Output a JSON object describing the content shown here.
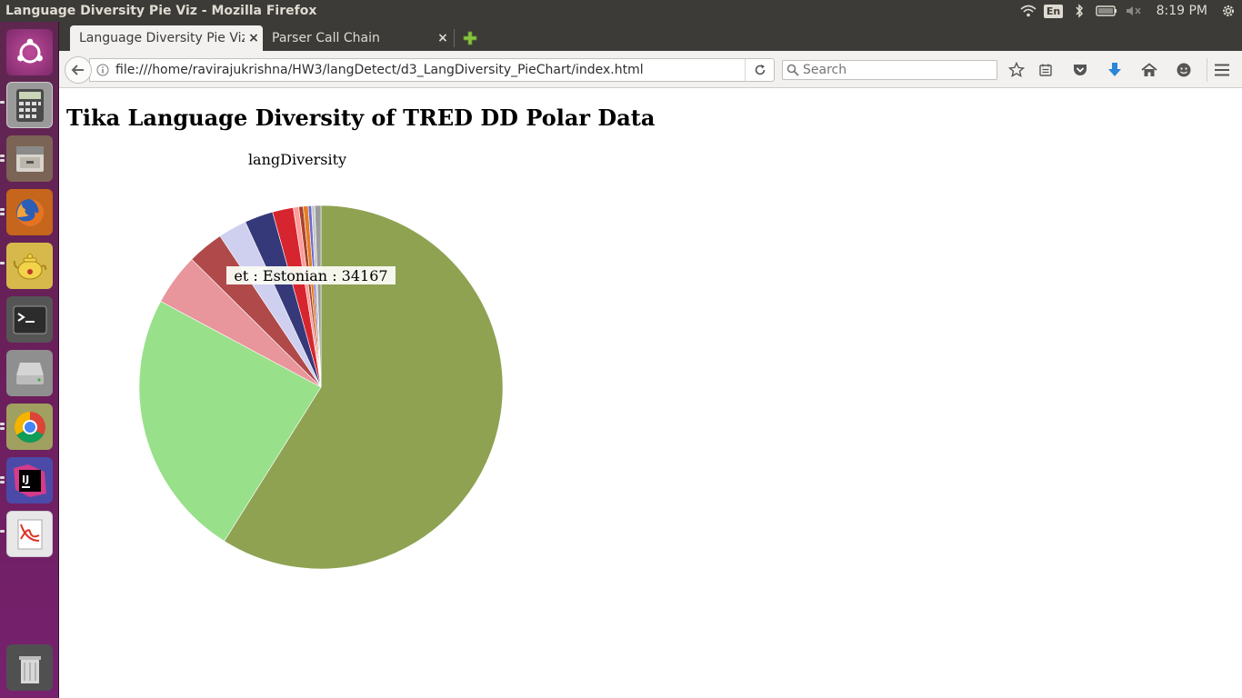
{
  "topbar": {
    "window_title": "Language Diversity Pie Viz - Mozilla Firefox",
    "keyboard_layout": "En",
    "clock": "8:19 PM"
  },
  "tabs": [
    {
      "label": "Language Diversity Pie Viz",
      "active": true
    },
    {
      "label": "Parser Call Chain",
      "active": false
    }
  ],
  "navbar": {
    "url": "file:///home/ravirajukrishna/HW3/langDetect/d3_LangDiversity_PieChart/index.html",
    "search_placeholder": "Search"
  },
  "launcher": {
    "items": [
      "ubuntu-dash",
      "calculator",
      "files",
      "firefox",
      "teapot",
      "terminal",
      "disks",
      "chrome",
      "intellij",
      "pdf-viewer",
      "trash"
    ]
  },
  "page": {
    "title": "Tika Language Diversity of TRED DD Polar Data"
  },
  "chart_data": {
    "type": "pie",
    "title": "langDiversity",
    "tooltip": "et : Estonian : 34167",
    "slice_colors": [
      "#8ea252",
      "#98e08a",
      "#e8959b",
      "#b04a4a",
      "#cfcff0",
      "#35397a",
      "#d6252e",
      "#ff9b9b",
      "#a9432a",
      "#e47d25",
      "#6b6bd0",
      "#c7c7c7",
      "#9b9b9b"
    ],
    "values": [
      60.4,
      24.5,
      4.7,
      3.3,
      2.6,
      2.6,
      1.9,
      0.5,
      0.4,
      0.45,
      0.3,
      0.3,
      0.55
    ]
  }
}
